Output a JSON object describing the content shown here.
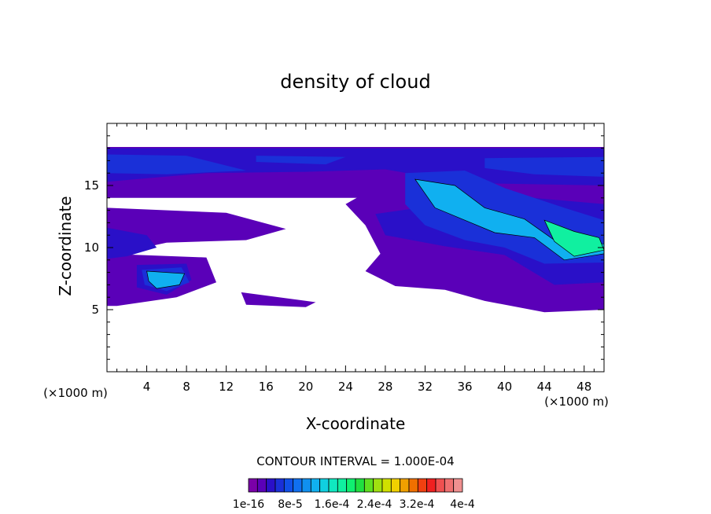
{
  "chart_data": {
    "type": "heatmap",
    "title": "density of cloud",
    "xlabel": "X-coordinate",
    "ylabel": "Z-coordinate",
    "x_unit_label": "(×1000 m)",
    "x_unit_label_right": "(×1000 m)",
    "xlim": [
      0,
      50
    ],
    "ylim": [
      0,
      20
    ],
    "x_ticks": [
      4,
      8,
      12,
      16,
      20,
      24,
      28,
      32,
      36,
      40,
      44,
      48
    ],
    "y_ticks": [
      5,
      10,
      15
    ],
    "contour_interval_text": "CONTOUR INTERVAL = 1.000E-04",
    "colorbar": {
      "labels": [
        "1e-16",
        "8e-5",
        "1.6e-4",
        "2.4e-4",
        "3.2e-4",
        "4e-4"
      ],
      "colors": [
        "#7a00a8",
        "#5a00b8",
        "#2a10c8",
        "#1a30d8",
        "#1050e8",
        "#1070f0",
        "#1090f0",
        "#10b0f0",
        "#10d0e0",
        "#10e8c0",
        "#10f0a0",
        "#10f070",
        "#20e040",
        "#60e020",
        "#a0e010",
        "#d0e000",
        "#f0d000",
        "#f0a000",
        "#f07000",
        "#f04010",
        "#f02020",
        "#f05050",
        "#f07070",
        "#f09090"
      ]
    },
    "regions": [
      {
        "level": 1,
        "polygon": [
          [
            0,
            18.1
          ],
          [
            50,
            18.1
          ],
          [
            50,
            14.0
          ],
          [
            0,
            14.0
          ]
        ]
      },
      {
        "level": 1,
        "polygon": [
          [
            0,
            13.2
          ],
          [
            12,
            12.8
          ],
          [
            18,
            11.5
          ],
          [
            14,
            10.6
          ],
          [
            6,
            10.4
          ],
          [
            2,
            9.7
          ],
          [
            0,
            9.5
          ]
        ]
      },
      {
        "level": 1,
        "polygon": [
          [
            0,
            9.5
          ],
          [
            10,
            9.2
          ],
          [
            11,
            7.2
          ],
          [
            7,
            6.0
          ],
          [
            1,
            5.3
          ],
          [
            0,
            5.3
          ]
        ]
      },
      {
        "level": 1,
        "polygon": [
          [
            13.5,
            6.4
          ],
          [
            21,
            5.6
          ],
          [
            20,
            5.2
          ],
          [
            14,
            5.4
          ]
        ]
      },
      {
        "level": 1,
        "polygon": [
          [
            26,
            14.4
          ],
          [
            50,
            14.2
          ],
          [
            50,
            5.0
          ],
          [
            44,
            4.8
          ],
          [
            38,
            5.7
          ],
          [
            34,
            6.6
          ],
          [
            29,
            6.9
          ],
          [
            26,
            8.1
          ],
          [
            27.5,
            9.5
          ],
          [
            26,
            11.8
          ],
          [
            24,
            13.5
          ]
        ]
      },
      {
        "level": 2,
        "polygon": [
          [
            0,
            18.0
          ],
          [
            50,
            18.0
          ],
          [
            50,
            15.0
          ],
          [
            36,
            15.2
          ],
          [
            28,
            16.3
          ],
          [
            20,
            16.1
          ],
          [
            10,
            16.0
          ],
          [
            0,
            15.3
          ]
        ]
      },
      {
        "level": 2,
        "polygon": [
          [
            0,
            11.6
          ],
          [
            4,
            11.0
          ],
          [
            5,
            10.0
          ],
          [
            2,
            9.3
          ],
          [
            0,
            9.1
          ]
        ]
      },
      {
        "level": 2,
        "polygon": [
          [
            3,
            8.6
          ],
          [
            8,
            8.7
          ],
          [
            8.5,
            7.4
          ],
          [
            6,
            6.2
          ],
          [
            3,
            6.8
          ]
        ]
      },
      {
        "level": 2,
        "polygon": [
          [
            27,
            12.7
          ],
          [
            40,
            14.2
          ],
          [
            50,
            13.5
          ],
          [
            50,
            7.2
          ],
          [
            45,
            7.0
          ],
          [
            40,
            9.4
          ],
          [
            34,
            10.1
          ],
          [
            28,
            11.0
          ]
        ]
      },
      {
        "level": 3,
        "polygon": [
          [
            0,
            17.5
          ],
          [
            8,
            17.4
          ],
          [
            14,
            16.2
          ],
          [
            6,
            15.9
          ],
          [
            0,
            16.0
          ]
        ]
      },
      {
        "level": 3,
        "polygon": [
          [
            15,
            17.4
          ],
          [
            24,
            17.3
          ],
          [
            22,
            16.7
          ],
          [
            15,
            16.9
          ]
        ]
      },
      {
        "level": 3,
        "polygon": [
          [
            38,
            17.2
          ],
          [
            50,
            17.3
          ],
          [
            50,
            15.7
          ],
          [
            43,
            15.9
          ],
          [
            38,
            16.4
          ]
        ]
      },
      {
        "level": 3,
        "polygon": [
          [
            30,
            16.0
          ],
          [
            36,
            16.2
          ],
          [
            40,
            14.8
          ],
          [
            46,
            13.2
          ],
          [
            50,
            12.2
          ],
          [
            50,
            8.8
          ],
          [
            44,
            8.7
          ],
          [
            40,
            10.0
          ],
          [
            36,
            10.6
          ],
          [
            32,
            11.8
          ],
          [
            30,
            13.5
          ]
        ]
      },
      {
        "level": 3,
        "polygon": [
          [
            3.5,
            8.2
          ],
          [
            7.5,
            8.4
          ],
          [
            8.3,
            7.2
          ],
          [
            6,
            6.5
          ],
          [
            3.8,
            7.0
          ]
        ]
      },
      {
        "level": 7,
        "polygon": [
          [
            31,
            15.5
          ],
          [
            35,
            15.0
          ],
          [
            38,
            13.2
          ],
          [
            42,
            12.3
          ],
          [
            45,
            10.6
          ],
          [
            50,
            10.3
          ],
          [
            50,
            9.5
          ],
          [
            46,
            9.0
          ],
          [
            43,
            10.8
          ],
          [
            39,
            11.2
          ],
          [
            36,
            12.2
          ],
          [
            33,
            13.2
          ]
        ]
      },
      {
        "level": 7,
        "polygon": [
          [
            4,
            8.1
          ],
          [
            7.8,
            7.9
          ],
          [
            7.3,
            7.0
          ],
          [
            5.0,
            6.7
          ],
          [
            4.2,
            7.3
          ]
        ]
      },
      {
        "level": 10,
        "polygon": [
          [
            44,
            12.2
          ],
          [
            47,
            11.3
          ],
          [
            49.5,
            10.8
          ],
          [
            50,
            9.8
          ],
          [
            47,
            9.3
          ],
          [
            45,
            10.5
          ]
        ]
      }
    ]
  }
}
